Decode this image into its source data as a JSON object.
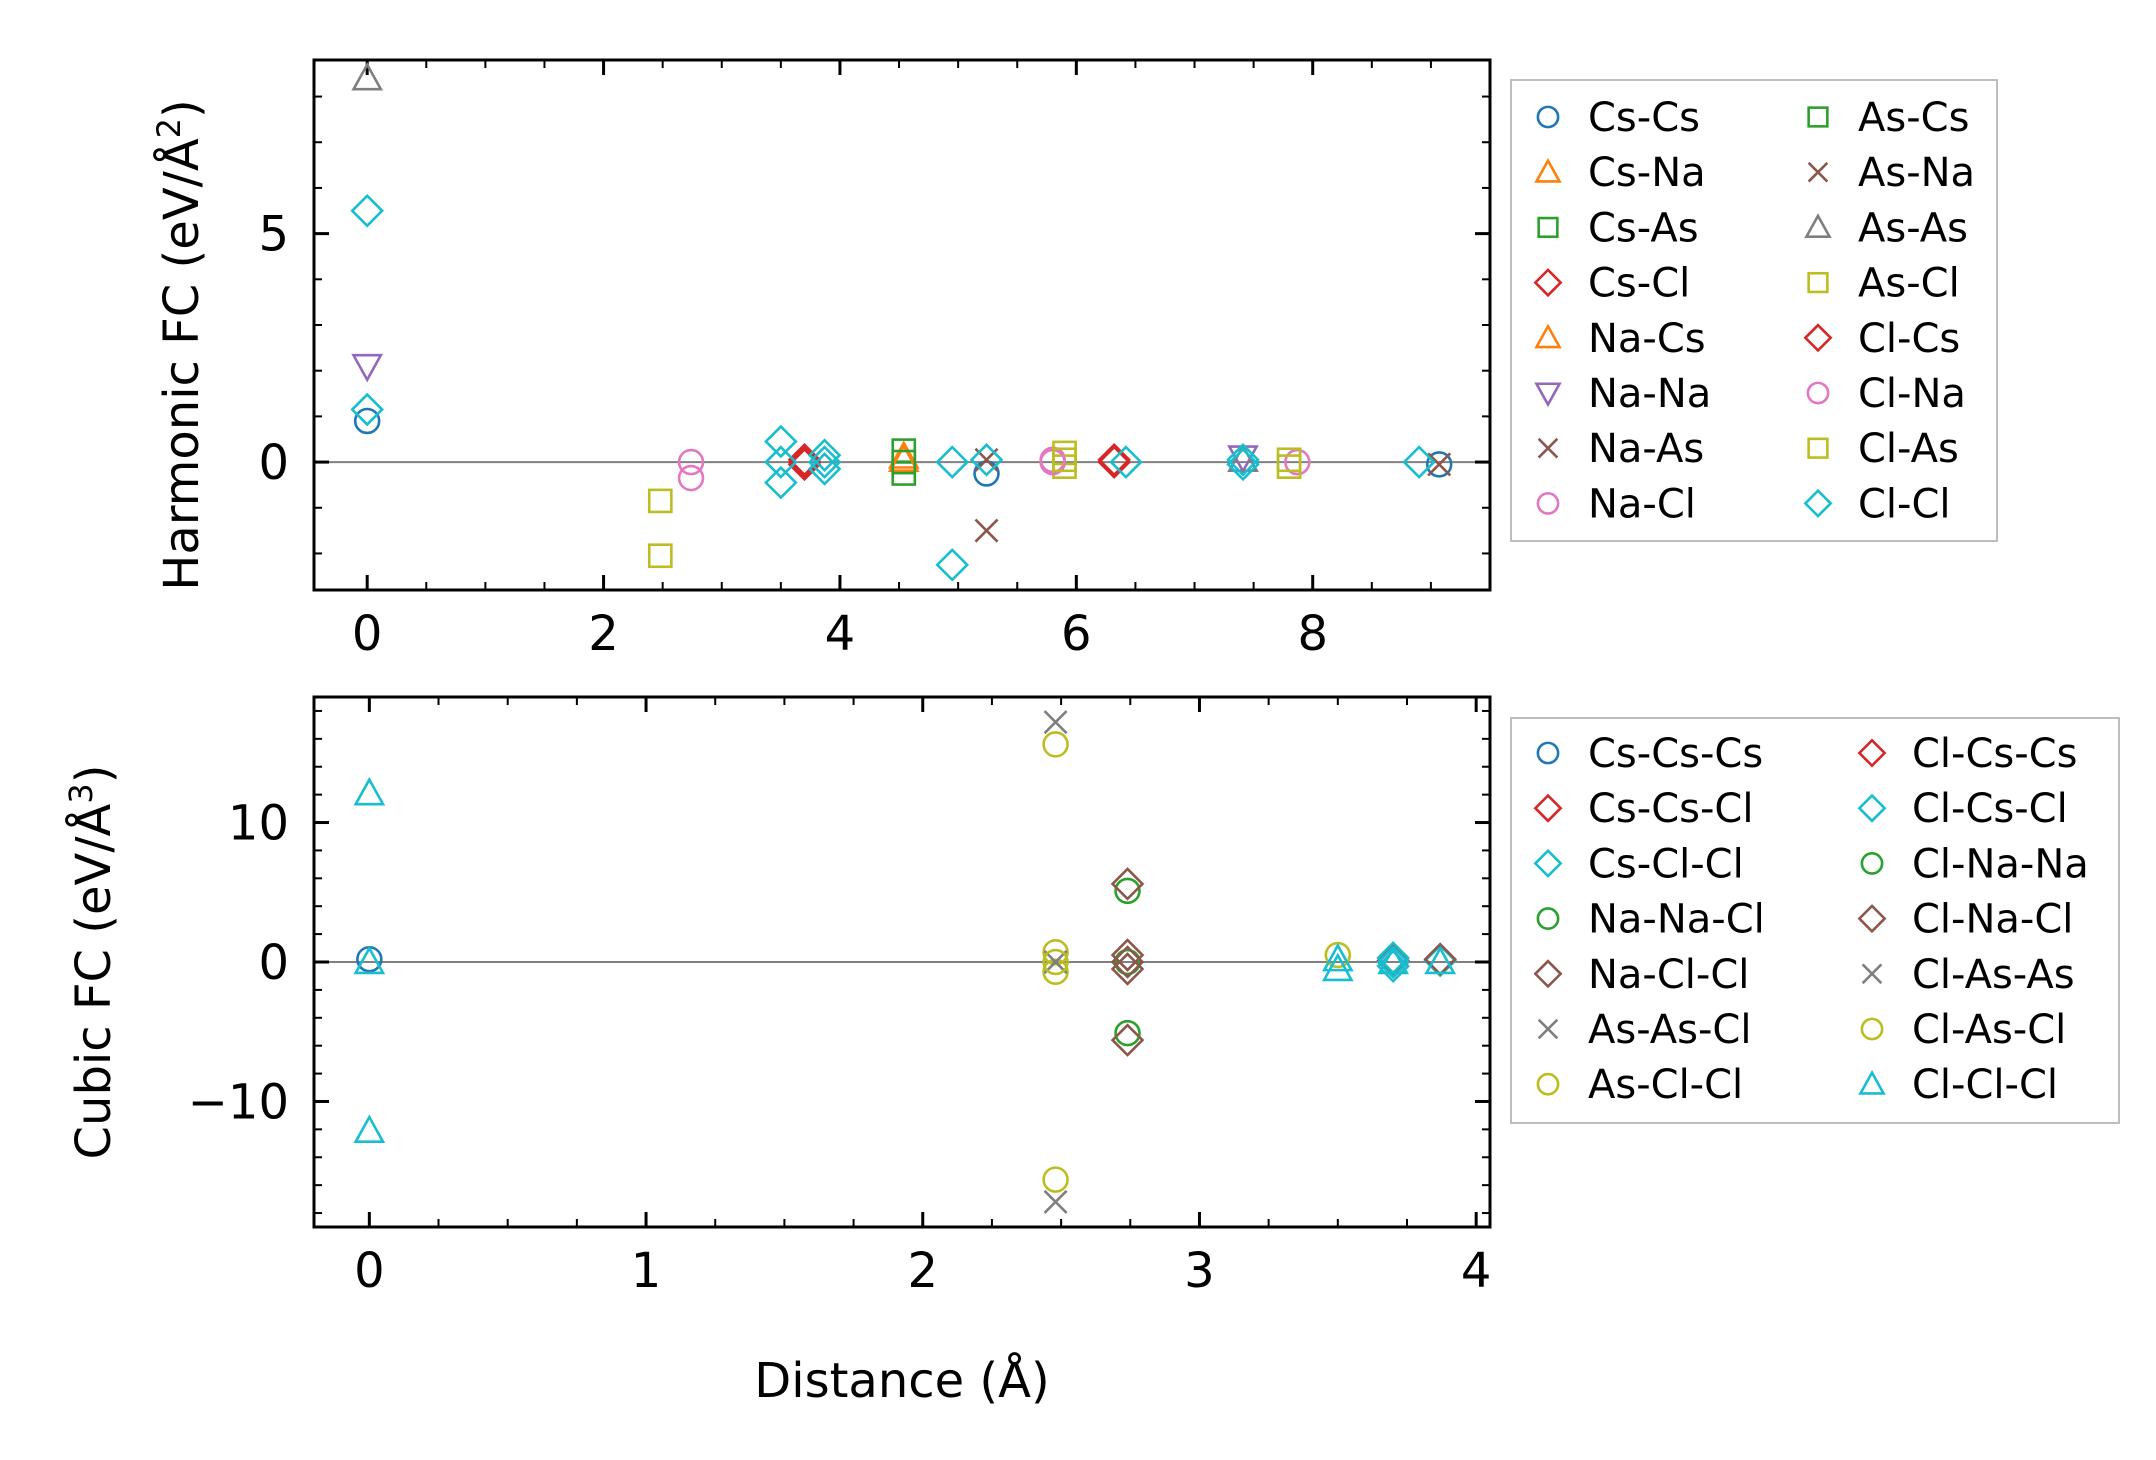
{
  "figure": {
    "xlabel": "Distance (Å)"
  },
  "chart_data": [
    {
      "type": "scatter",
      "title": "",
      "ylabel_prefix": "Harmonic FC (eV/Å",
      "ylabel_exp": "2",
      "ylabel_suffix": ")",
      "xlim": [
        -0.45,
        9.5
      ],
      "ylim": [
        -2.8,
        8.8
      ],
      "xticks": [
        0,
        2,
        4,
        6,
        8
      ],
      "yticks": [
        0,
        5
      ],
      "legend": "outside-right",
      "series": [
        {
          "name": "Cs-Cs",
          "marker": "circle",
          "color": "#1f77b4",
          "points": [
            [
              0,
              0.9
            ],
            [
              5.24,
              -0.25
            ],
            [
              9.07,
              -0.05
            ]
          ]
        },
        {
          "name": "Cs-Na",
          "marker": "triangle-up",
          "color": "#ff7f0e",
          "points": [
            [
              4.54,
              0.12
            ]
          ]
        },
        {
          "name": "Cs-As",
          "marker": "square",
          "color": "#2ca02c",
          "points": [
            [
              4.54,
              0.25
            ],
            [
              4.54,
              -0.25
            ]
          ]
        },
        {
          "name": "Cs-Cl",
          "marker": "diamond",
          "color": "#d62728",
          "points": [
            [
              3.7,
              0.05
            ],
            [
              3.7,
              -0.05
            ],
            [
              6.32,
              0.05
            ]
          ]
        },
        {
          "name": "Na-Cs",
          "marker": "triangle-up",
          "color": "#ff7f0e",
          "points": [
            [
              4.54,
              0.05
            ]
          ]
        },
        {
          "name": "Na-Na",
          "marker": "triangle-down",
          "color": "#9467bd",
          "points": [
            [
              0,
              2.1
            ],
            [
              7.41,
              0.1
            ]
          ]
        },
        {
          "name": "Na-As",
          "marker": "x",
          "color": "#8c564b",
          "points": [
            [
              5.24,
              -1.5
            ],
            [
              5.24,
              0.05
            ]
          ]
        },
        {
          "name": "Na-Cl",
          "marker": "circle",
          "color": "#e377c2",
          "points": [
            [
              2.74,
              0.0
            ],
            [
              2.74,
              -0.35
            ],
            [
              5.8,
              0.05
            ],
            [
              7.87,
              0.0
            ]
          ]
        },
        {
          "name": "As-Cs",
          "marker": "square",
          "color": "#2ca02c",
          "points": [
            [
              4.54,
              0.0
            ]
          ]
        },
        {
          "name": "As-Na",
          "marker": "x",
          "color": "#8c564b",
          "points": [
            [
              9.07,
              -0.05
            ]
          ]
        },
        {
          "name": "As-As",
          "marker": "triangle-up",
          "color": "#7f7f7f",
          "points": [
            [
              0,
              8.4
            ],
            [
              7.41,
              0.05
            ]
          ]
        },
        {
          "name": "As-Cl",
          "marker": "square",
          "color": "#bcbd22",
          "points": [
            [
              2.48,
              -0.85
            ],
            [
              2.48,
              -2.05
            ],
            [
              5.9,
              0.2
            ],
            [
              5.9,
              -0.1
            ],
            [
              7.8,
              0.05
            ],
            [
              7.8,
              -0.1
            ]
          ]
        },
        {
          "name": "Cl-Cs",
          "marker": "diamond",
          "color": "#d62728",
          "points": [
            [
              3.7,
              0.0
            ],
            [
              6.32,
              0.0
            ]
          ]
        },
        {
          "name": "Cl-Na",
          "marker": "circle",
          "color": "#e377c2",
          "points": [
            [
              5.8,
              0.0
            ]
          ]
        },
        {
          "name": "Cl-As",
          "marker": "square",
          "color": "#bcbd22",
          "points": [
            [
              5.9,
              0.05
            ]
          ]
        },
        {
          "name": "Cl-Cl",
          "marker": "diamond",
          "color": "#17becf",
          "points": [
            [
              0,
              5.5
            ],
            [
              0,
              1.15
            ],
            [
              3.5,
              0.45
            ],
            [
              3.5,
              0.0
            ],
            [
              3.5,
              -0.45
            ],
            [
              3.87,
              0.15
            ],
            [
              3.87,
              0.0
            ],
            [
              3.87,
              -0.15
            ],
            [
              4.95,
              0.0
            ],
            [
              4.95,
              -2.25
            ],
            [
              5.24,
              0.05
            ],
            [
              6.42,
              0.0
            ],
            [
              7.41,
              0.05
            ],
            [
              7.41,
              -0.05
            ],
            [
              8.9,
              0.0
            ]
          ]
        }
      ]
    },
    {
      "type": "scatter",
      "title": "",
      "ylabel_prefix": "Cubic FC (eV/Å",
      "ylabel_exp": "3",
      "ylabel_suffix": ")",
      "xlim": [
        -0.2,
        4.05
      ],
      "ylim": [
        -19,
        19
      ],
      "xticks": [
        0,
        1,
        2,
        3,
        4
      ],
      "yticks": [
        -10,
        0,
        10
      ],
      "yticklabels": [
        "−10",
        "0",
        "10"
      ],
      "legend": "outside-right",
      "series": [
        {
          "name": "Cs-Cs-Cs",
          "marker": "circle",
          "color": "#1f77b4",
          "points": [
            [
              0,
              0.2
            ]
          ]
        },
        {
          "name": "Cs-Cs-Cl",
          "marker": "diamond",
          "color": "#d62728",
          "points": [
            [
              3.7,
              0.1
            ]
          ]
        },
        {
          "name": "Cs-Cl-Cl",
          "marker": "diamond",
          "color": "#17becf",
          "points": [
            [
              3.7,
              0.3
            ],
            [
              3.7,
              -0.3
            ],
            [
              3.87,
              0.1
            ]
          ]
        },
        {
          "name": "Na-Na-Cl",
          "marker": "circle",
          "color": "#2ca02c",
          "points": [
            [
              2.74,
              5.1
            ],
            [
              2.74,
              -5.1
            ]
          ]
        },
        {
          "name": "Na-Cl-Cl",
          "marker": "diamond",
          "color": "#8c564b",
          "points": [
            [
              2.74,
              5.6
            ],
            [
              2.74,
              -5.6
            ],
            [
              2.74,
              0.5
            ],
            [
              2.74,
              -0.5
            ],
            [
              3.87,
              0.2
            ]
          ]
        },
        {
          "name": "As-As-Cl",
          "marker": "x",
          "color": "#7f7f7f",
          "points": [
            [
              2.48,
              17.2
            ],
            [
              2.48,
              -17.2
            ]
          ]
        },
        {
          "name": "As-Cl-Cl",
          "marker": "circle",
          "color": "#bcbd22",
          "points": [
            [
              2.48,
              0.7
            ],
            [
              2.48,
              -0.7
            ],
            [
              3.5,
              0.5
            ]
          ]
        },
        {
          "name": "Cl-Cs-Cs",
          "marker": "diamond",
          "color": "#d62728",
          "points": [
            [
              3.7,
              0.0
            ]
          ]
        },
        {
          "name": "Cl-Cs-Cl",
          "marker": "diamond",
          "color": "#17becf",
          "points": [
            [
              3.7,
              0.0
            ]
          ]
        },
        {
          "name": "Cl-Na-Na",
          "marker": "circle",
          "color": "#2ca02c",
          "points": [
            [
              2.74,
              0.0
            ]
          ]
        },
        {
          "name": "Cl-Na-Cl",
          "marker": "diamond",
          "color": "#8c564b",
          "points": [
            [
              2.74,
              0.0
            ]
          ]
        },
        {
          "name": "Cl-As-As",
          "marker": "x",
          "color": "#7f7f7f",
          "points": [
            [
              2.48,
              0.0
            ]
          ]
        },
        {
          "name": "Cl-As-Cl",
          "marker": "circle",
          "color": "#bcbd22",
          "points": [
            [
              2.48,
              15.6
            ],
            [
              2.48,
              -15.6
            ],
            [
              2.48,
              0.0
            ]
          ]
        },
        {
          "name": "Cl-Cl-Cl",
          "marker": "triangle-up",
          "color": "#17becf",
          "points": [
            [
              0,
              12.1
            ],
            [
              0,
              -12.1
            ],
            [
              0,
              0.0
            ],
            [
              3.5,
              0.2
            ],
            [
              3.5,
              -0.5
            ],
            [
              3.7,
              0.0
            ],
            [
              3.87,
              0.0
            ]
          ]
        }
      ]
    }
  ]
}
